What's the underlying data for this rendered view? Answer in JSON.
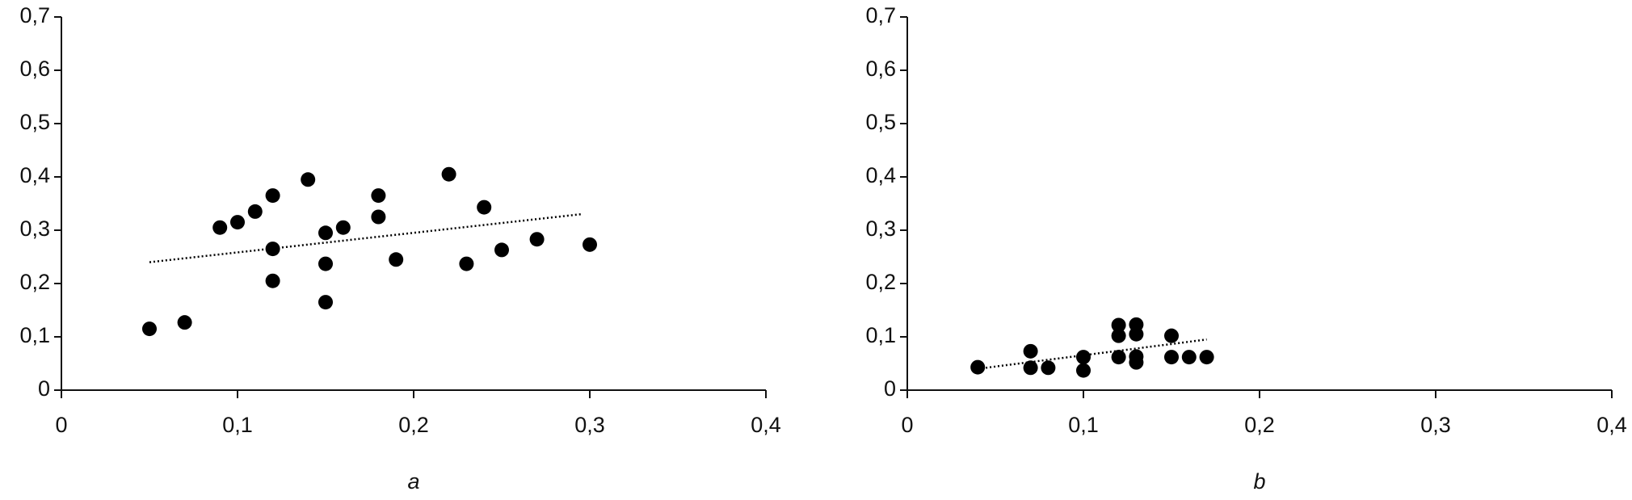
{
  "chart_data": [
    {
      "type": "scatter",
      "xlabel": "a",
      "color": "#000000",
      "x": [
        0.05,
        0.07,
        0.09,
        0.1,
        0.11,
        0.12,
        0.12,
        0.12,
        0.14,
        0.15,
        0.15,
        0.15,
        0.16,
        0.18,
        0.18,
        0.19,
        0.22,
        0.23,
        0.24,
        0.25,
        0.27,
        0.3
      ],
      "y": [
        0.115,
        0.127,
        0.305,
        0.315,
        0.335,
        0.365,
        0.265,
        0.205,
        0.395,
        0.295,
        0.237,
        0.165,
        0.305,
        0.365,
        0.325,
        0.245,
        0.405,
        0.237,
        0.343,
        0.263,
        0.283,
        0.273
      ],
      "trendline": {
        "x": [
          0.05,
          0.295
        ],
        "y": [
          0.24,
          0.33
        ],
        "style": "dotted"
      },
      "xlim": [
        0,
        0.4
      ],
      "ylim": [
        0,
        0.7
      ],
      "xticks": [
        0,
        {
          "value": 0.1,
          "label": "0,1"
        },
        {
          "value": 0.2,
          "label": "0,2"
        },
        {
          "value": 0.3,
          "label": "0,3"
        },
        {
          "value": 0.4,
          "label": "0,4"
        }
      ],
      "yticks": [
        0,
        {
          "value": 0.1,
          "label": "0,1"
        },
        {
          "value": 0.2,
          "label": "0,2"
        },
        {
          "value": 0.3,
          "label": "0,3"
        },
        {
          "value": 0.4,
          "label": "0,4"
        },
        {
          "value": 0.5,
          "label": "0,5"
        },
        {
          "value": 0.6,
          "label": "0,6"
        },
        {
          "value": 0.7,
          "label": "0,7"
        }
      ]
    },
    {
      "type": "scatter",
      "xlabel": "b",
      "color": "#000000",
      "x": [
        0.04,
        0.07,
        0.07,
        0.08,
        0.1,
        0.1,
        0.12,
        0.12,
        0.12,
        0.13,
        0.13,
        0.13,
        0.13,
        0.15,
        0.15,
        0.16,
        0.17
      ],
      "y": [
        0.043,
        0.073,
        0.042,
        0.042,
        0.062,
        0.037,
        0.122,
        0.102,
        0.062,
        0.123,
        0.105,
        0.063,
        0.052,
        0.102,
        0.062,
        0.062,
        0.062
      ],
      "trendline": {
        "x": [
          0.04,
          0.17
        ],
        "y": [
          0.04,
          0.095
        ],
        "style": "dotted"
      },
      "xlim": [
        0,
        0.4
      ],
      "ylim": [
        0,
        0.7
      ],
      "xticks": [
        0,
        {
          "value": 0.1,
          "label": "0,1"
        },
        {
          "value": 0.2,
          "label": "0,2"
        },
        {
          "value": 0.3,
          "label": "0,3"
        },
        {
          "value": 0.4,
          "label": "0,4"
        }
      ],
      "yticks": [
        0,
        {
          "value": 0.1,
          "label": "0,1"
        },
        {
          "value": 0.2,
          "label": "0,2"
        },
        {
          "value": 0.3,
          "label": "0,3"
        },
        {
          "value": 0.4,
          "label": "0,4"
        },
        {
          "value": 0.5,
          "label": "0,5"
        },
        {
          "value": 0.6,
          "label": "0,6"
        },
        {
          "value": 0.7,
          "label": "0,7"
        }
      ]
    }
  ]
}
